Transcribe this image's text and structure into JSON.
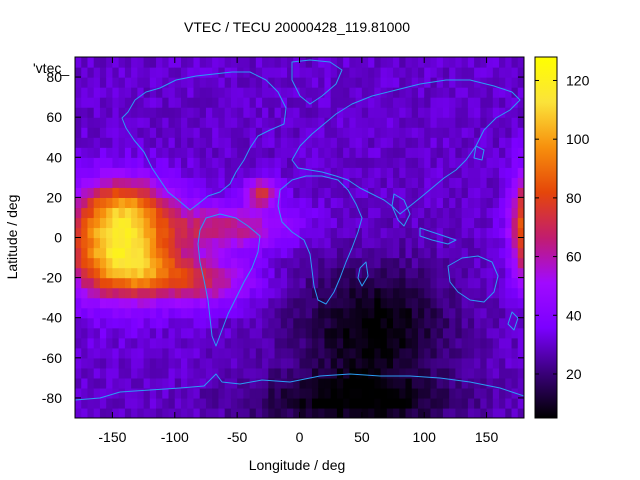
{
  "chart_data": {
    "type": "heatmap",
    "title": "VTEC / TECU 20000428_119.81000",
    "xlabel": "Longitude / deg",
    "ylabel": "Latitude / deg",
    "legend_label": "'vtec_",
    "xlim": [
      -180,
      180
    ],
    "ylim": [
      -90,
      90
    ],
    "x_ticks": [
      -150,
      -100,
      -50,
      0,
      50,
      100,
      150
    ],
    "y_ticks": [
      -80,
      -60,
      -40,
      -20,
      0,
      20,
      40,
      60,
      80
    ],
    "colorbar": {
      "range": [
        5,
        128
      ],
      "ticks": [
        20,
        40,
        60,
        80,
        100,
        120
      ],
      "palette": "gnuplot-pm3d-default",
      "stops": [
        "#000000",
        "#3a007a",
        "#7b00ff",
        "#a10aff",
        "#c21d6e",
        "#e5460a",
        "#f7900d",
        "#fbe33a",
        "#ffff00"
      ]
    },
    "grid_step_deg": 5,
    "background_vtec": 30,
    "features": [
      {
        "name": "main-crest-south-pacific",
        "lon": -145,
        "lat": -3,
        "sigma_lon": 30,
        "sigma_lat": 17,
        "amplitude": 82
      },
      {
        "name": "northern-anomaly-crest",
        "lon": -140,
        "lat": 18,
        "sigma_lon": 24,
        "sigma_lat": 9,
        "amplitude": 30
      },
      {
        "name": "southern-anomaly-crest",
        "lon": -120,
        "lat": -18,
        "sigma_lon": 30,
        "sigma_lat": 8,
        "amplitude": 25
      },
      {
        "name": "equatorial-extension-east",
        "lon": -60,
        "lat": 5,
        "sigma_lon": 35,
        "sigma_lat": 8,
        "amplitude": 35
      },
      {
        "name": "south-america-south",
        "lon": -75,
        "lat": -22,
        "sigma_lon": 28,
        "sigma_lat": 8,
        "amplitude": 30
      },
      {
        "name": "atlantic-patch",
        "lon": -30,
        "lat": 23,
        "sigma_lon": 9,
        "sigma_lat": 5,
        "amplitude": 42
      },
      {
        "name": "dayside-east-edge",
        "lon": 182,
        "lat": 5,
        "sigma_lon": 9,
        "sigma_lat": 18,
        "amplitude": 62
      },
      {
        "name": "southern-indian-ocean-trough",
        "lon": 60,
        "lat": -45,
        "sigma_lon": 45,
        "sigma_lat": 22,
        "amplitude": -26
      },
      {
        "name": "antarctic-trough",
        "lon": 40,
        "lat": -82,
        "sigma_lon": 60,
        "sigma_lat": 10,
        "amplitude": -22
      }
    ]
  }
}
